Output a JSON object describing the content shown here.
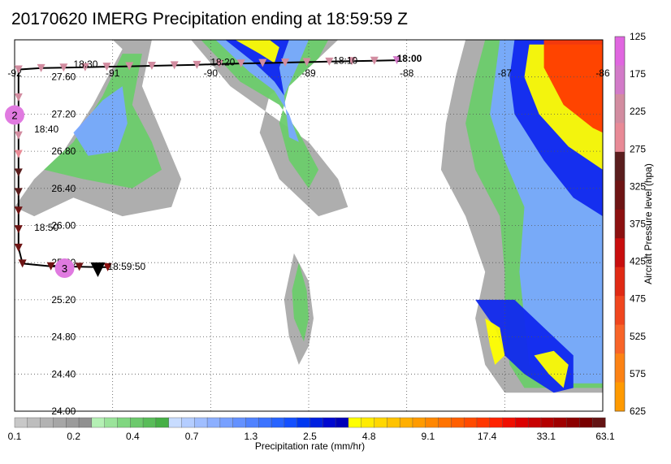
{
  "title": "20170620 IMERG Precipitation ending at 18:59:59 Z",
  "map": {
    "lon_range": [
      -92.0,
      -86.0
    ],
    "lat_range": [
      24.0,
      28.0
    ],
    "lon_ticks": [
      -92,
      -91,
      -90,
      -89,
      -88,
      -87,
      -86
    ],
    "lon_tick_labels": [
      "-92",
      "-91",
      "-90",
      "-89",
      "-88",
      "-87",
      "-86"
    ],
    "lat_ticks": [
      27.6,
      27.2,
      26.8,
      26.4,
      26.0,
      25.6,
      25.2,
      24.8,
      24.4,
      24.0
    ],
    "lat_tick_labels": [
      "27.60",
      "27.20",
      "26.80",
      "26.40",
      "26.00",
      "25.60",
      "25.20",
      "24.80",
      "24.40",
      "24.00"
    ],
    "grid": true
  },
  "precip_colorbar": {
    "label": "Precipitation rate (mm/hr)",
    "tick_labels": [
      "0.1",
      "0.2",
      "0.4",
      "0.7",
      "1.3",
      "2.5",
      "4.8",
      "9.1",
      "17.4",
      "33.1",
      "63.1"
    ],
    "colors": [
      "#c8c8c8",
      "#bdbdbd",
      "#b2b2b2",
      "#a6a6a6",
      "#9b9b9b",
      "#909090",
      "#b4f0b4",
      "#9ae39a",
      "#80d680",
      "#6cc96c",
      "#59bc59",
      "#46af46",
      "#c8dcff",
      "#b4cdff",
      "#a0beff",
      "#8cafff",
      "#78a0ff",
      "#6491ff",
      "#5082ff",
      "#3c73ff",
      "#2864ff",
      "#1450ff",
      "#0038f0",
      "#0020e0",
      "#0008d0",
      "#0000b8",
      "#ffff00",
      "#ffeb00",
      "#ffd700",
      "#ffc300",
      "#ffaf00",
      "#ff9b00",
      "#ff8700",
      "#ff7300",
      "#ff5f00",
      "#ff4b00",
      "#ff3700",
      "#ff2300",
      "#f00f00",
      "#dc0000",
      "#c80000",
      "#b40000",
      "#a00000",
      "#8c0000",
      "#780000",
      "#641414"
    ]
  },
  "pressure_colorbar": {
    "label": "Aircraft Pressure level (hpa)",
    "tick_labels": [
      "125",
      "175",
      "225",
      "275",
      "325",
      "375",
      "425",
      "475",
      "525",
      "575",
      "625"
    ],
    "colors": [
      "#e066e0",
      "#d27ac8",
      "#d28ca0",
      "#e88a96",
      "#5a1e1e",
      "#6e1414",
      "#8c1010",
      "#c80e0e",
      "#e02a14",
      "#f0461e",
      "#f86428",
      "#fc8214",
      "#ff9a00"
    ]
  },
  "track": {
    "points": [
      {
        "lon": -88.1,
        "lat": 27.78,
        "p": 200
      },
      {
        "lon": -88.33,
        "lat": 27.775,
        "p": 210
      },
      {
        "lon": -88.56,
        "lat": 27.77,
        "p": 210
      },
      {
        "lon": -88.79,
        "lat": 27.765,
        "p": 215
      },
      {
        "lon": -89.02,
        "lat": 27.76,
        "p": 215
      },
      {
        "lon": -89.24,
        "lat": 27.755,
        "p": 215
      },
      {
        "lon": -89.47,
        "lat": 27.75,
        "p": 215
      },
      {
        "lon": -89.69,
        "lat": 27.745,
        "p": 220
      },
      {
        "lon": -89.91,
        "lat": 27.74,
        "p": 220
      },
      {
        "lon": -90.14,
        "lat": 27.73,
        "p": 220
      },
      {
        "lon": -90.37,
        "lat": 27.725,
        "p": 220
      },
      {
        "lon": -90.6,
        "lat": 27.72,
        "p": 220
      },
      {
        "lon": -90.83,
        "lat": 27.715,
        "p": 220
      },
      {
        "lon": -91.06,
        "lat": 27.71,
        "p": 220
      },
      {
        "lon": -91.28,
        "lat": 27.705,
        "p": 220
      },
      {
        "lon": -91.5,
        "lat": 27.7,
        "p": 220
      },
      {
        "lon": -91.73,
        "lat": 27.695,
        "p": 220
      },
      {
        "lon": -91.96,
        "lat": 27.68,
        "p": 230
      },
      {
        "lon": -91.96,
        "lat": 27.38,
        "p": 240
      },
      {
        "lon": -91.96,
        "lat": 27.17,
        "p": 240
      },
      {
        "lon": -91.96,
        "lat": 26.97,
        "p": 240
      },
      {
        "lon": -91.96,
        "lat": 26.77,
        "p": 250
      },
      {
        "lon": -91.96,
        "lat": 26.57,
        "p": 300
      },
      {
        "lon": -91.96,
        "lat": 26.36,
        "p": 300
      },
      {
        "lon": -91.96,
        "lat": 26.16,
        "p": 320
      },
      {
        "lon": -91.96,
        "lat": 25.96,
        "p": 330
      },
      {
        "lon": -91.96,
        "lat": 25.76,
        "p": 330
      },
      {
        "lon": -91.92,
        "lat": 25.59,
        "p": 340
      },
      {
        "lon": -91.63,
        "lat": 25.56,
        "p": 350
      },
      {
        "lon": -91.34,
        "lat": 25.555,
        "p": 350
      },
      {
        "lon": -91.05,
        "lat": 25.55,
        "p": 360
      }
    ],
    "end_marker": {
      "lon": -91.3,
      "lat": 25.54,
      "label": "18:59:50"
    },
    "time_labels": [
      {
        "text": "18:00",
        "lon": -88.1,
        "lat": 27.78,
        "bold": true
      },
      {
        "text": "18:10",
        "lon": -88.75,
        "lat": 27.76,
        "bold": false
      },
      {
        "text": "18:20",
        "lon": -90.0,
        "lat": 27.74,
        "bold": false
      },
      {
        "text": "18:30",
        "lon": -91.4,
        "lat": 27.72,
        "bold": false
      },
      {
        "text": "18:40",
        "lon": -91.8,
        "lat": 27.02,
        "bold": false
      },
      {
        "text": "18:50",
        "lon": -91.8,
        "lat": 25.96,
        "bold": false
      }
    ],
    "waypoints": [
      {
        "label": "2",
        "lon": -92.0,
        "lat": 27.19
      },
      {
        "label": "3",
        "lon": -91.49,
        "lat": 25.54
      }
    ]
  },
  "precip_fields": [
    {
      "name": "west-band",
      "tier": 0,
      "points": [
        [
          -92.0,
          26.2
        ],
        [
          -91.8,
          26.5
        ],
        [
          -91.5,
          26.8
        ],
        [
          -91.2,
          27.3
        ],
        [
          -90.9,
          27.9
        ],
        [
          -91.0,
          28.0
        ],
        [
          -90.6,
          28.0
        ],
        [
          -90.7,
          27.5
        ],
        [
          -90.5,
          27.0
        ],
        [
          -90.3,
          26.5
        ],
        [
          -90.4,
          26.2
        ],
        [
          -90.9,
          26.1
        ],
        [
          -91.4,
          26.3
        ],
        [
          -91.8,
          26.1
        ]
      ]
    },
    {
      "name": "west-band-green",
      "tier": 1,
      "points": [
        [
          -91.7,
          26.6
        ],
        [
          -91.4,
          26.9
        ],
        [
          -91.1,
          27.4
        ],
        [
          -90.9,
          27.85
        ],
        [
          -90.7,
          27.85
        ],
        [
          -90.8,
          27.3
        ],
        [
          -90.6,
          26.9
        ],
        [
          -90.5,
          26.6
        ],
        [
          -90.8,
          26.4
        ],
        [
          -91.3,
          26.5
        ]
      ]
    },
    {
      "name": "west-band-blue",
      "tier": 2,
      "points": [
        [
          -91.4,
          27.0
        ],
        [
          -91.1,
          27.35
        ],
        [
          -90.9,
          27.5
        ],
        [
          -90.85,
          27.1
        ],
        [
          -90.95,
          26.8
        ],
        [
          -91.25,
          26.75
        ]
      ]
    },
    {
      "name": "north-core",
      "tier": 0,
      "points": [
        [
          -90.2,
          28.0
        ],
        [
          -89.8,
          27.5
        ],
        [
          -89.4,
          27.2
        ],
        [
          -89.0,
          26.9
        ],
        [
          -88.7,
          26.5
        ],
        [
          -88.6,
          26.2
        ],
        [
          -88.9,
          26.1
        ],
        [
          -89.3,
          26.5
        ],
        [
          -89.5,
          27.0
        ],
        [
          -89.4,
          27.4
        ],
        [
          -89.0,
          27.7
        ],
        [
          -88.7,
          28.0
        ]
      ]
    },
    {
      "name": "north-core-green",
      "tier": 1,
      "points": [
        [
          -90.1,
          28.0
        ],
        [
          -89.7,
          27.55
        ],
        [
          -89.3,
          27.3
        ],
        [
          -89.1,
          27.0
        ],
        [
          -88.9,
          26.6
        ],
        [
          -89.0,
          26.4
        ],
        [
          -89.2,
          26.7
        ],
        [
          -89.3,
          27.1
        ],
        [
          -89.2,
          27.5
        ],
        [
          -88.9,
          27.8
        ],
        [
          -88.8,
          28.0
        ]
      ]
    },
    {
      "name": "north-core-blue",
      "tier": 2,
      "points": [
        [
          -89.95,
          28.0
        ],
        [
          -89.6,
          27.65
        ],
        [
          -89.35,
          27.45
        ],
        [
          -89.2,
          27.2
        ],
        [
          -89.1,
          26.9
        ],
        [
          -89.2,
          26.95
        ],
        [
          -89.25,
          27.4
        ],
        [
          -89.1,
          27.75
        ],
        [
          -89.0,
          28.0
        ]
      ]
    },
    {
      "name": "north-core-deep",
      "tier": 3,
      "points": [
        [
          -89.85,
          28.0
        ],
        [
          -89.55,
          27.75
        ],
        [
          -89.35,
          27.55
        ],
        [
          -89.25,
          27.4
        ],
        [
          -89.3,
          27.7
        ],
        [
          -89.2,
          28.0
        ]
      ]
    },
    {
      "name": "north-core-orange",
      "tier": 4,
      "points": [
        [
          -89.75,
          28.0
        ],
        [
          -89.5,
          27.85
        ],
        [
          -89.35,
          27.75
        ],
        [
          -89.3,
          27.92
        ],
        [
          -89.4,
          28.0
        ]
      ]
    },
    {
      "name": "south-strip",
      "tier": 0,
      "points": [
        [
          -89.15,
          25.7
        ],
        [
          -89.0,
          25.4
        ],
        [
          -88.95,
          25.0
        ],
        [
          -89.0,
          24.7
        ],
        [
          -89.1,
          24.5
        ],
        [
          -89.2,
          24.8
        ],
        [
          -89.25,
          25.2
        ]
      ]
    },
    {
      "name": "south-strip-green",
      "tier": 1,
      "points": [
        [
          -89.1,
          25.6
        ],
        [
          -89.02,
          25.3
        ],
        [
          -89.0,
          25.0
        ],
        [
          -89.05,
          24.75
        ],
        [
          -89.15,
          25.0
        ],
        [
          -89.17,
          25.3
        ]
      ]
    },
    {
      "name": "east-band",
      "tier": 0,
      "points": [
        [
          -87.4,
          28.0
        ],
        [
          -87.5,
          27.6
        ],
        [
          -87.6,
          27.1
        ],
        [
          -87.65,
          26.6
        ],
        [
          -87.4,
          26.1
        ],
        [
          -87.2,
          25.5
        ],
        [
          -87.3,
          25.0
        ],
        [
          -87.2,
          24.5
        ],
        [
          -87.0,
          24.2
        ],
        [
          -86.0,
          24.2
        ],
        [
          -86.0,
          28.0
        ]
      ]
    },
    {
      "name": "east-band-green",
      "tier": 1,
      "points": [
        [
          -87.2,
          28.0
        ],
        [
          -87.3,
          27.6
        ],
        [
          -87.4,
          27.1
        ],
        [
          -87.3,
          26.6
        ],
        [
          -87.05,
          26.1
        ],
        [
          -87.0,
          25.5
        ],
        [
          -87.0,
          25.0
        ],
        [
          -86.95,
          24.5
        ],
        [
          -86.8,
          24.25
        ],
        [
          -86.0,
          24.25
        ],
        [
          -86.0,
          28.0
        ]
      ]
    },
    {
      "name": "east-band-blue",
      "tier": 2,
      "points": [
        [
          -87.05,
          28.0
        ],
        [
          -87.1,
          27.6
        ],
        [
          -87.15,
          27.2
        ],
        [
          -87.0,
          26.7
        ],
        [
          -86.8,
          26.2
        ],
        [
          -86.85,
          25.5
        ],
        [
          -86.8,
          25.0
        ],
        [
          -86.75,
          24.5
        ],
        [
          -86.6,
          24.3
        ],
        [
          -86.0,
          24.3
        ],
        [
          -86.0,
          28.0
        ]
      ]
    },
    {
      "name": "east-band-deep",
      "tier": 3,
      "points": [
        [
          -86.9,
          28.0
        ],
        [
          -86.95,
          27.6
        ],
        [
          -86.9,
          27.2
        ],
        [
          -86.6,
          26.7
        ],
        [
          -86.3,
          26.3
        ],
        [
          -86.0,
          26.1
        ],
        [
          -86.0,
          28.0
        ]
      ]
    },
    {
      "name": "east-band-yellow",
      "tier": 4,
      "points": [
        [
          -86.75,
          27.95
        ],
        [
          -86.8,
          27.6
        ],
        [
          -86.65,
          27.2
        ],
        [
          -86.35,
          26.85
        ],
        [
          -86.0,
          26.6
        ],
        [
          -86.0,
          27.95
        ]
      ]
    },
    {
      "name": "east-band-red",
      "tier": 5,
      "points": [
        [
          -86.6,
          28.0
        ],
        [
          -86.6,
          27.7
        ],
        [
          -86.4,
          27.3
        ],
        [
          -86.1,
          27.05
        ],
        [
          -86.0,
          27.0
        ],
        [
          -86.0,
          28.0
        ]
      ]
    },
    {
      "name": "se-core",
      "tier": 3,
      "points": [
        [
          -87.3,
          25.2
        ],
        [
          -87.1,
          24.9
        ],
        [
          -87.0,
          24.6
        ],
        [
          -86.8,
          24.4
        ],
        [
          -86.5,
          24.2
        ],
        [
          -86.3,
          24.25
        ],
        [
          -86.3,
          24.6
        ],
        [
          -86.6,
          24.9
        ],
        [
          -86.9,
          25.2
        ]
      ]
    },
    {
      "name": "se-yellow-a",
      "tier": 4,
      "points": [
        [
          -87.2,
          25.0
        ],
        [
          -87.15,
          24.7
        ],
        [
          -87.1,
          24.5
        ],
        [
          -87.0,
          24.6
        ],
        [
          -87.05,
          24.9
        ]
      ]
    },
    {
      "name": "se-yellow-b",
      "tier": 4,
      "points": [
        [
          -86.7,
          24.6
        ],
        [
          -86.55,
          24.4
        ],
        [
          -86.4,
          24.25
        ],
        [
          -86.35,
          24.5
        ],
        [
          -86.5,
          24.65
        ]
      ]
    }
  ]
}
